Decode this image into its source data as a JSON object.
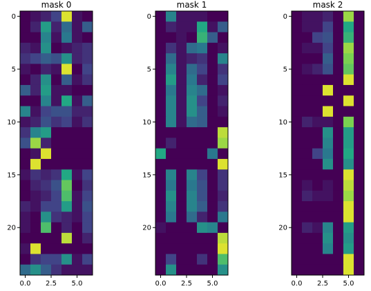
{
  "colors": {
    "low": "#440154",
    "mid1": "#414487",
    "mid2": "#2a788e",
    "mid3": "#22a884",
    "mid4": "#7ad151",
    "high": "#fde725"
  },
  "chart_data": [
    {
      "type": "heatmap",
      "title": "mask 0",
      "x_ticks": [
        "0.0",
        "2.5",
        "5.0"
      ],
      "y_ticks": [
        "0",
        "5",
        "10",
        "15",
        "20"
      ],
      "xlim": [
        -0.5,
        6.5
      ],
      "ylim": [
        24.5,
        -0.5
      ],
      "rows": 25,
      "cols": 7,
      "values": [
        [
          0.0,
          0.05,
          0.1,
          0.2,
          0.95,
          0.05,
          0.0
        ],
        [
          0.0,
          0.1,
          0.55,
          0.1,
          0.35,
          0.05,
          0.3
        ],
        [
          0.0,
          0.0,
          0.45,
          0.05,
          0.4,
          0.05,
          0.0
        ],
        [
          0.1,
          0.05,
          0.5,
          0.0,
          0.05,
          0.1,
          0.15
        ],
        [
          0.15,
          0.2,
          0.3,
          0.25,
          0.5,
          0.1,
          0.15
        ],
        [
          0.05,
          0.0,
          0.1,
          0.05,
          0.95,
          0.0,
          0.2
        ],
        [
          0.0,
          0.1,
          0.5,
          0.0,
          0.3,
          0.05,
          0.15
        ],
        [
          0.3,
          0.1,
          0.55,
          0.05,
          0.05,
          0.0,
          0.0
        ],
        [
          0.0,
          0.0,
          0.45,
          0.05,
          0.6,
          0.05,
          0.3
        ],
        [
          0.45,
          0.05,
          0.2,
          0.25,
          0.25,
          0.1,
          0.1
        ],
        [
          0.05,
          0.1,
          0.25,
          0.15,
          0.2,
          0.05,
          0.15
        ],
        [
          0.15,
          0.45,
          0.55,
          0.0,
          0.0,
          0.0,
          0.0
        ],
        [
          0.25,
          0.85,
          0.1,
          0.0,
          0.0,
          0.0,
          0.0
        ],
        [
          0.0,
          0.05,
          0.95,
          0.0,
          0.0,
          0.0,
          0.0
        ],
        [
          0.0,
          0.95,
          0.0,
          0.0,
          0.0,
          0.0,
          0.0
        ],
        [
          0.05,
          0.15,
          0.1,
          0.15,
          0.6,
          0.05,
          0.2
        ],
        [
          0.0,
          0.1,
          0.15,
          0.25,
          0.75,
          0.0,
          0.15
        ],
        [
          0.0,
          0.05,
          0.1,
          0.2,
          0.7,
          0.05,
          0.2
        ],
        [
          0.1,
          0.05,
          0.2,
          0.2,
          0.55,
          0.05,
          0.25
        ],
        [
          0.05,
          0.0,
          0.5,
          0.15,
          0.1,
          0.05,
          0.2
        ],
        [
          0.05,
          0.0,
          0.7,
          0.0,
          0.1,
          0.0,
          0.2
        ],
        [
          0.0,
          0.0,
          0.0,
          0.0,
          0.9,
          0.0,
          0.1
        ],
        [
          0.05,
          0.95,
          0.0,
          0.0,
          0.0,
          0.0,
          0.0
        ],
        [
          0.0,
          0.15,
          0.2,
          0.2,
          0.5,
          0.05,
          0.2
        ],
        [
          0.35,
          0.5,
          0.3,
          0.15,
          0.05,
          0.05,
          0.05
        ]
      ]
    },
    {
      "type": "heatmap",
      "title": "mask 1",
      "x_ticks": [
        "0.0",
        "2.5",
        "5.0"
      ],
      "y_ticks": [
        "0",
        "5",
        "10",
        "15",
        "20"
      ],
      "xlim": [
        -0.5,
        6.5
      ],
      "ylim": [
        24.5,
        -0.5
      ],
      "rows": 25,
      "cols": 7,
      "values": [
        [
          0.0,
          0.45,
          0.05,
          0.05,
          0.05,
          0.0,
          0.0
        ],
        [
          0.0,
          0.1,
          0.05,
          0.05,
          0.6,
          0.05,
          0.3
        ],
        [
          0.0,
          0.0,
          0.05,
          0.0,
          0.65,
          0.3,
          0.0
        ],
        [
          0.0,
          0.15,
          0.05,
          0.35,
          0.4,
          0.0,
          0.05
        ],
        [
          0.0,
          0.35,
          0.05,
          0.1,
          0.15,
          0.0,
          0.45
        ],
        [
          0.0,
          0.45,
          0.05,
          0.35,
          0.2,
          0.0,
          0.15
        ],
        [
          0.0,
          0.55,
          0.05,
          0.4,
          0.1,
          0.0,
          0.2
        ],
        [
          0.0,
          0.4,
          0.05,
          0.45,
          0.35,
          0.0,
          0.05
        ],
        [
          0.0,
          0.45,
          0.05,
          0.5,
          0.2,
          0.0,
          0.1
        ],
        [
          0.0,
          0.45,
          0.05,
          0.5,
          0.3,
          0.0,
          0.05
        ],
        [
          0.0,
          0.45,
          0.05,
          0.35,
          0.3,
          0.0,
          0.0
        ],
        [
          0.0,
          0.0,
          0.0,
          0.0,
          0.0,
          0.0,
          0.9
        ],
        [
          0.0,
          0.1,
          0.0,
          0.0,
          0.0,
          0.0,
          0.85
        ],
        [
          0.6,
          0.0,
          0.0,
          0.0,
          0.0,
          0.4,
          0.0
        ],
        [
          0.0,
          0.0,
          0.0,
          0.0,
          0.0,
          0.0,
          0.95
        ],
        [
          0.0,
          0.45,
          0.0,
          0.45,
          0.2,
          0.0,
          0.15
        ],
        [
          0.0,
          0.4,
          0.0,
          0.4,
          0.25,
          0.0,
          0.15
        ],
        [
          0.0,
          0.5,
          0.0,
          0.45,
          0.25,
          0.0,
          0.1
        ],
        [
          0.0,
          0.45,
          0.0,
          0.45,
          0.3,
          0.0,
          0.15
        ],
        [
          0.0,
          0.4,
          0.0,
          0.35,
          0.1,
          0.0,
          0.4
        ],
        [
          0.05,
          0.0,
          0.0,
          0.0,
          0.5,
          0.45,
          0.0
        ],
        [
          0.0,
          0.0,
          0.0,
          0.0,
          0.0,
          0.0,
          0.9
        ],
        [
          0.0,
          0.0,
          0.0,
          0.0,
          0.0,
          0.0,
          0.95
        ],
        [
          0.0,
          0.2,
          0.0,
          0.0,
          0.15,
          0.0,
          0.7
        ],
        [
          0.0,
          0.5,
          0.0,
          0.0,
          0.0,
          0.0,
          0.5
        ]
      ]
    },
    {
      "type": "heatmap",
      "title": "mask 2",
      "x_ticks": [
        "0.0",
        "2.5",
        "5.0"
      ],
      "y_ticks": [
        "0",
        "5",
        "10",
        "15",
        "20"
      ],
      "xlim": [
        -0.5,
        6.5
      ],
      "ylim": [
        24.5,
        -0.5
      ],
      "rows": 25,
      "cols": 7,
      "values": [
        [
          0.0,
          0.05,
          0.05,
          0.1,
          0.0,
          0.85,
          0.0
        ],
        [
          0.0,
          0.05,
          0.05,
          0.2,
          0.0,
          0.6,
          0.0
        ],
        [
          0.0,
          0.0,
          0.2,
          0.25,
          0.0,
          0.65,
          0.0
        ],
        [
          0.0,
          0.05,
          0.05,
          0.2,
          0.0,
          0.85,
          0.0
        ],
        [
          0.0,
          0.0,
          0.0,
          0.3,
          0.0,
          0.8,
          0.0
        ],
        [
          0.0,
          0.05,
          0.1,
          0.25,
          0.0,
          0.75,
          0.0
        ],
        [
          0.0,
          0.0,
          0.0,
          0.0,
          0.0,
          0.95,
          0.0
        ],
        [
          0.0,
          0.0,
          0.0,
          0.95,
          0.0,
          0.0,
          0.0
        ],
        [
          0.0,
          0.0,
          0.0,
          0.0,
          0.0,
          0.95,
          0.0
        ],
        [
          0.0,
          0.0,
          0.0,
          0.95,
          0.0,
          0.0,
          0.0
        ],
        [
          0.0,
          0.1,
          0.05,
          0.05,
          0.0,
          0.8,
          0.0
        ],
        [
          0.0,
          0.0,
          0.0,
          0.5,
          0.0,
          0.55,
          0.0
        ],
        [
          0.0,
          0.0,
          0.0,
          0.45,
          0.0,
          0.55,
          0.0
        ],
        [
          0.0,
          0.0,
          0.2,
          0.4,
          0.0,
          0.6,
          0.0
        ],
        [
          0.0,
          0.0,
          0.0,
          0.5,
          0.0,
          0.5,
          0.0
        ],
        [
          0.0,
          0.0,
          0.0,
          0.0,
          0.0,
          0.95,
          0.0
        ],
        [
          0.0,
          0.05,
          0.0,
          0.05,
          0.0,
          0.9,
          0.0
        ],
        [
          0.0,
          0.1,
          0.05,
          0.05,
          0.0,
          0.85,
          0.0
        ],
        [
          0.0,
          0.0,
          0.0,
          0.0,
          0.0,
          0.95,
          0.0
        ],
        [
          0.0,
          0.0,
          0.0,
          0.0,
          0.0,
          0.95,
          0.0
        ],
        [
          0.0,
          0.1,
          0.05,
          0.45,
          0.0,
          0.55,
          0.0
        ],
        [
          0.0,
          0.0,
          0.0,
          0.5,
          0.0,
          0.5,
          0.0
        ],
        [
          0.0,
          0.0,
          0.0,
          0.45,
          0.0,
          0.55,
          0.0
        ],
        [
          0.0,
          0.0,
          0.0,
          0.0,
          0.0,
          0.95,
          0.0
        ],
        [
          0.0,
          0.0,
          0.0,
          0.0,
          0.0,
          0.95,
          0.0
        ]
      ]
    }
  ]
}
